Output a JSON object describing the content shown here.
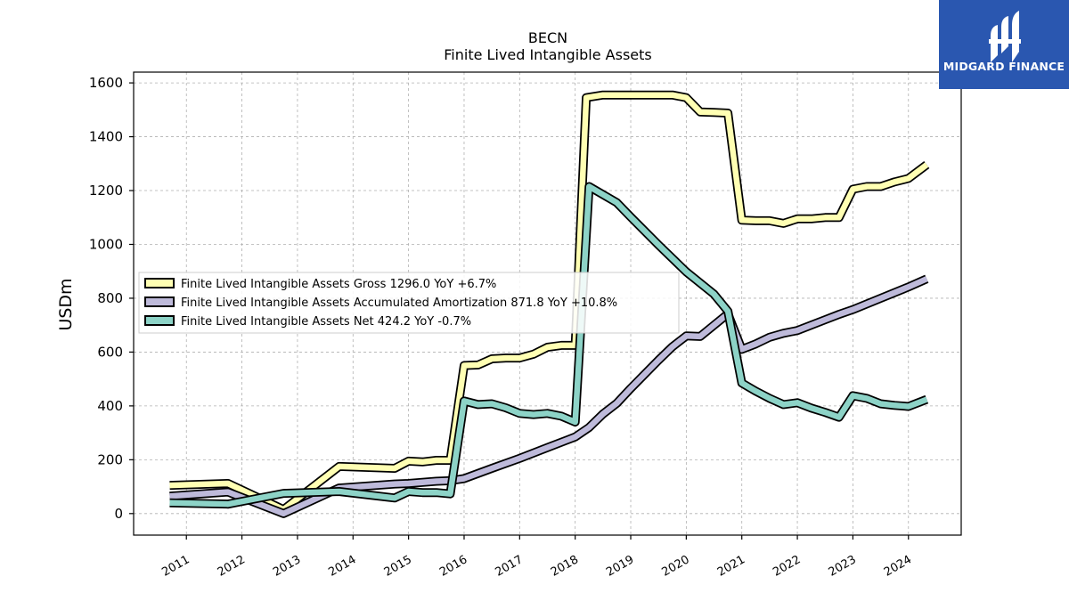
{
  "chart_data": {
    "type": "line",
    "title": "BECN",
    "subtitle": "Finite Lived Intangible Assets",
    "ylabel": "USDm",
    "ylim": [
      -80,
      1640
    ],
    "xlim": [
      2010.05,
      2024.95
    ],
    "y_ticks": [
      0,
      200,
      400,
      600,
      800,
      1000,
      1200,
      1400,
      1600
    ],
    "x_ticks": [
      2011,
      2012,
      2013,
      2014,
      2015,
      2016,
      2017,
      2018,
      2019,
      2020,
      2021,
      2022,
      2023,
      2024
    ],
    "grid": true,
    "legend_position": "center-left",
    "series": [
      {
        "name": "Finite Lived Intangible Assets Gross",
        "legend_label": "Finite Lived Intangible Assets Gross  1296.0 YoY +6.7%",
        "color": "#ffffb3",
        "points": [
          [
            2010.7,
            105
          ],
          [
            2011.75,
            112
          ],
          [
            2012.75,
            15
          ],
          [
            2013.75,
            175
          ],
          [
            2014.75,
            168
          ],
          [
            2015.0,
            195
          ],
          [
            2015.25,
            192
          ],
          [
            2015.5,
            198
          ],
          [
            2015.75,
            198
          ],
          [
            2016.0,
            550
          ],
          [
            2016.25,
            552
          ],
          [
            2016.5,
            575
          ],
          [
            2016.75,
            578
          ],
          [
            2017.0,
            578
          ],
          [
            2017.25,
            592
          ],
          [
            2017.5,
            618
          ],
          [
            2017.75,
            625
          ],
          [
            2018.0,
            625
          ],
          [
            2018.2,
            1545
          ],
          [
            2018.5,
            1555
          ],
          [
            2018.75,
            1555
          ],
          [
            2019.0,
            1555
          ],
          [
            2019.5,
            1555
          ],
          [
            2019.75,
            1555
          ],
          [
            2020.0,
            1545
          ],
          [
            2020.25,
            1492
          ],
          [
            2020.5,
            1490
          ],
          [
            2020.75,
            1488
          ],
          [
            2021.0,
            1090
          ],
          [
            2021.25,
            1088
          ],
          [
            2021.5,
            1088
          ],
          [
            2021.75,
            1078
          ],
          [
            2022.0,
            1095
          ],
          [
            2022.25,
            1095
          ],
          [
            2022.5,
            1100
          ],
          [
            2022.75,
            1100
          ],
          [
            2023.0,
            1205
          ],
          [
            2023.25,
            1215
          ],
          [
            2023.5,
            1215
          ],
          [
            2023.75,
            1232
          ],
          [
            2024.0,
            1245
          ],
          [
            2024.33,
            1296
          ]
        ]
      },
      {
        "name": "Finite Lived Intangible Assets Accumulated Amortization",
        "legend_label": "Finite Lived Intangible Assets Accumulated Amortization  871.8 YoY +10.8%",
        "color": "#bebada",
        "points": [
          [
            2010.7,
            65
          ],
          [
            2011.75,
            80
          ],
          [
            2012.75,
            0
          ],
          [
            2013.75,
            95
          ],
          [
            2014.75,
            110
          ],
          [
            2015.0,
            112
          ],
          [
            2015.5,
            120
          ],
          [
            2015.75,
            122
          ],
          [
            2016.0,
            130
          ],
          [
            2016.5,
            168
          ],
          [
            2017.0,
            205
          ],
          [
            2017.5,
            245
          ],
          [
            2018.0,
            285
          ],
          [
            2018.25,
            320
          ],
          [
            2018.5,
            370
          ],
          [
            2018.75,
            410
          ],
          [
            2019.0,
            465
          ],
          [
            2019.5,
            570
          ],
          [
            2019.75,
            620
          ],
          [
            2020.0,
            660
          ],
          [
            2020.25,
            658
          ],
          [
            2020.5,
            700
          ],
          [
            2020.75,
            742
          ],
          [
            2021.0,
            610
          ],
          [
            2021.25,
            630
          ],
          [
            2021.5,
            655
          ],
          [
            2021.75,
            670
          ],
          [
            2022.0,
            680
          ],
          [
            2022.5,
            720
          ],
          [
            2022.75,
            740
          ],
          [
            2023.0,
            758
          ],
          [
            2023.5,
            800
          ],
          [
            2024.0,
            842
          ],
          [
            2024.33,
            872
          ]
        ]
      },
      {
        "name": "Finite Lived Intangible Assets Net",
        "legend_label": "Finite Lived Intangible Assets Net  424.2 YoY -0.7%",
        "color": "#8dd3c7",
        "points": [
          [
            2010.7,
            40
          ],
          [
            2011.75,
            35
          ],
          [
            2012.75,
            75
          ],
          [
            2013.75,
            82
          ],
          [
            2014.75,
            58
          ],
          [
            2015.0,
            82
          ],
          [
            2015.25,
            78
          ],
          [
            2015.5,
            78
          ],
          [
            2015.75,
            73
          ],
          [
            2016.0,
            418
          ],
          [
            2016.25,
            405
          ],
          [
            2016.5,
            408
          ],
          [
            2016.75,
            393
          ],
          [
            2017.0,
            372
          ],
          [
            2017.25,
            368
          ],
          [
            2017.5,
            372
          ],
          [
            2017.75,
            362
          ],
          [
            2018.0,
            340
          ],
          [
            2018.25,
            1215
          ],
          [
            2018.75,
            1155
          ],
          [
            2019.0,
            1102
          ],
          [
            2019.5,
            998
          ],
          [
            2020.0,
            898
          ],
          [
            2020.5,
            815
          ],
          [
            2020.75,
            752
          ],
          [
            2021.0,
            485
          ],
          [
            2021.25,
            455
          ],
          [
            2021.5,
            428
          ],
          [
            2021.75,
            405
          ],
          [
            2022.0,
            412
          ],
          [
            2022.25,
            392
          ],
          [
            2022.5,
            376
          ],
          [
            2022.75,
            358
          ],
          [
            2023.0,
            438
          ],
          [
            2023.25,
            428
          ],
          [
            2023.5,
            408
          ],
          [
            2023.75,
            402
          ],
          [
            2024.0,
            398
          ],
          [
            2024.33,
            424
          ]
        ]
      }
    ]
  },
  "logo": {
    "text": "MIDGARD FINANCE",
    "background": "#2a57b0"
  }
}
